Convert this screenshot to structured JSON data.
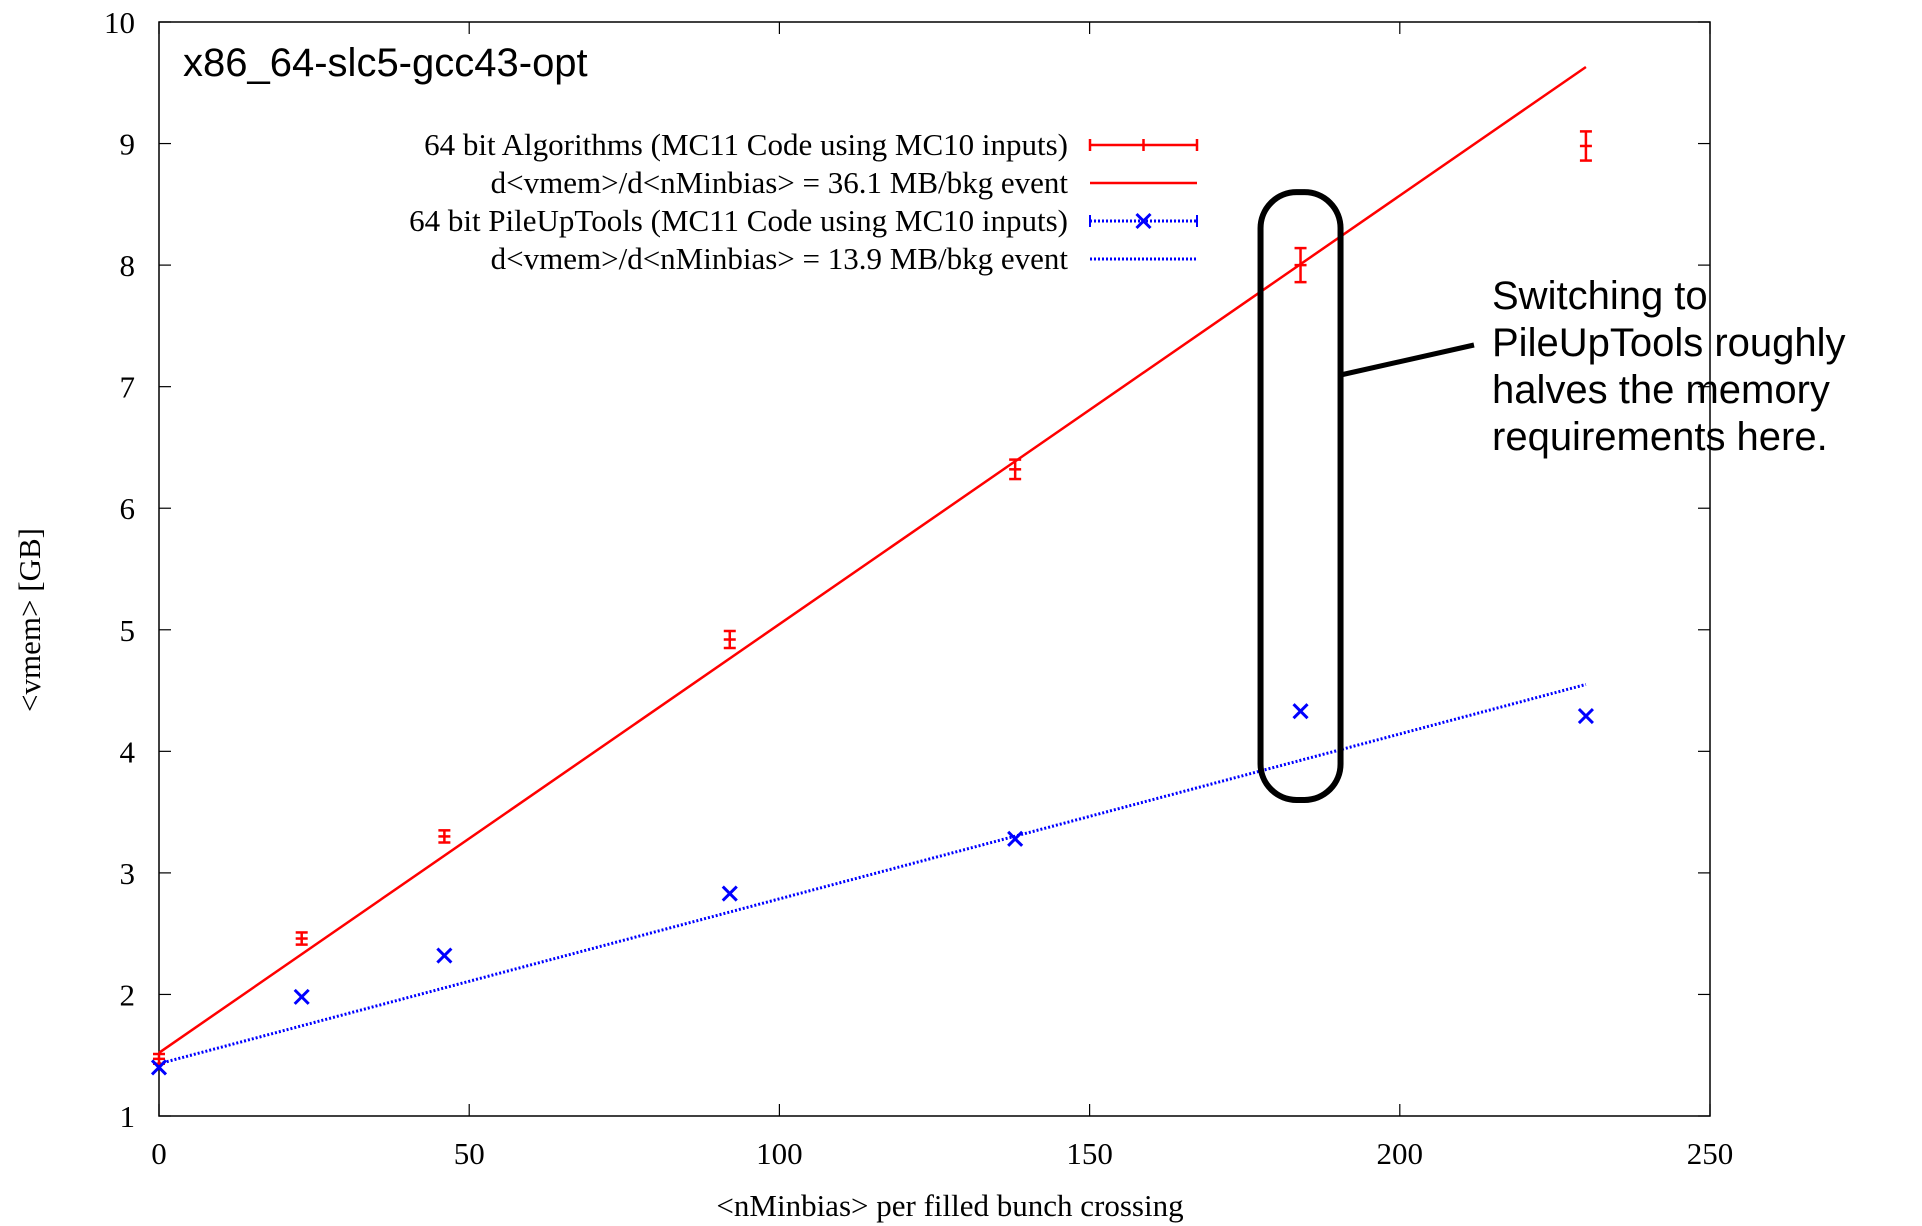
{
  "chart_data": {
    "type": "scatter",
    "platform_label": "x86_64-slc5-gcc43-opt",
    "xlabel": "<nMinbias> per filled bunch crossing",
    "ylabel": "<vmem> [GB]",
    "xlim": [
      0,
      250
    ],
    "ylim": [
      1,
      10
    ],
    "x_ticks": [
      0,
      50,
      100,
      150,
      200,
      250
    ],
    "y_ticks": [
      1,
      2,
      3,
      4,
      5,
      6,
      7,
      8,
      9,
      10
    ],
    "grid": false,
    "legend_position": "top-right",
    "series": [
      {
        "name": "64 bit Algorithms (MC11 Code using MC10 inputs)",
        "color": "#ff0000",
        "marker": "error-bar",
        "points": [
          {
            "x": 0,
            "y": 1.47,
            "err": 0.04
          },
          {
            "x": 23,
            "y": 2.46,
            "err": 0.05
          },
          {
            "x": 46,
            "y": 3.3,
            "err": 0.05
          },
          {
            "x": 92,
            "y": 4.92,
            "err": 0.07
          },
          {
            "x": 138,
            "y": 6.32,
            "err": 0.08
          },
          {
            "x": 184,
            "y": 8.0,
            "err": 0.14
          },
          {
            "x": 230,
            "y": 8.98,
            "err": 0.12
          }
        ]
      },
      {
        "name": "64 bit PileUpTools (MC11 Code using MC10 inputs)",
        "color": "#0000ff",
        "marker": "x",
        "points": [
          {
            "x": 0,
            "y": 1.4
          },
          {
            "x": 23,
            "y": 1.98
          },
          {
            "x": 46,
            "y": 2.32
          },
          {
            "x": 92,
            "y": 2.83
          },
          {
            "x": 138,
            "y": 3.28
          },
          {
            "x": 184,
            "y": 4.33
          },
          {
            "x": 230,
            "y": 4.29
          }
        ]
      }
    ],
    "fits": [
      {
        "label": "d<vmem>/d<nMinbias> = 36.1 MB/bkg event",
        "color": "#ff0000",
        "style": "solid",
        "x_range": [
          0,
          230
        ],
        "y_range": [
          1.52,
          9.63
        ]
      },
      {
        "label": "d<vmem>/d<nMinbias> = 13.9 MB/bkg event",
        "color": "#0000ff",
        "style": "dotted",
        "x_range": [
          0,
          230
        ],
        "y_range": [
          1.43,
          4.55
        ]
      }
    ],
    "annotation": {
      "lines": [
        "Switching to",
        "PileUpTools roughly",
        "halves the memory",
        "requirements here."
      ],
      "highlight_x": 184,
      "highlight_y_range": [
        3.6,
        8.6
      ]
    }
  }
}
